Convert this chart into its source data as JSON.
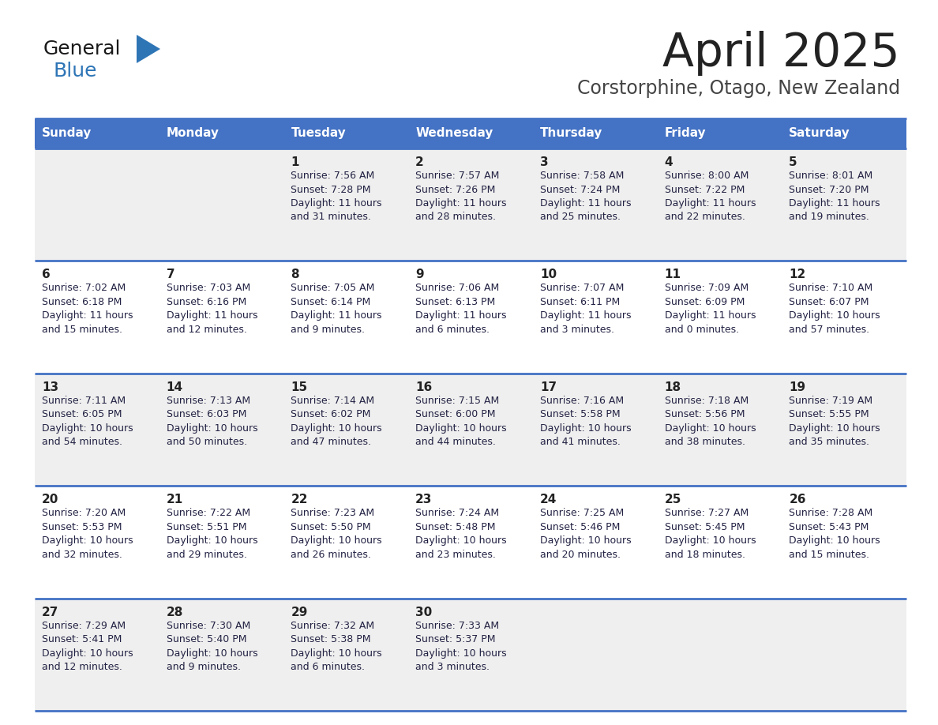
{
  "title": "April 2025",
  "subtitle": "Corstorphine, Otago, New Zealand",
  "days_of_week": [
    "Sunday",
    "Monday",
    "Tuesday",
    "Wednesday",
    "Thursday",
    "Friday",
    "Saturday"
  ],
  "header_bg_color": "#4472C4",
  "header_text_color": "#FFFFFF",
  "cell_bg_color_row0": "#EFEFEF",
  "cell_bg_color_row1": "#FFFFFF",
  "cell_bg_color_row2": "#EFEFEF",
  "cell_bg_color_row3": "#FFFFFF",
  "cell_bg_color_row4": "#EFEFEF",
  "cell_border_color": "#4472C4",
  "day_number_color": "#222222",
  "cell_text_color": "#222244",
  "title_color": "#222222",
  "subtitle_color": "#444444",
  "logo_general_color": "#1a1a1a",
  "logo_blue_color": "#2E75B6",
  "calendar_data": [
    [
      "",
      "",
      "1\nSunrise: 7:56 AM\nSunset: 7:28 PM\nDaylight: 11 hours\nand 31 minutes.",
      "2\nSunrise: 7:57 AM\nSunset: 7:26 PM\nDaylight: 11 hours\nand 28 minutes.",
      "3\nSunrise: 7:58 AM\nSunset: 7:24 PM\nDaylight: 11 hours\nand 25 minutes.",
      "4\nSunrise: 8:00 AM\nSunset: 7:22 PM\nDaylight: 11 hours\nand 22 minutes.",
      "5\nSunrise: 8:01 AM\nSunset: 7:20 PM\nDaylight: 11 hours\nand 19 minutes."
    ],
    [
      "6\nSunrise: 7:02 AM\nSunset: 6:18 PM\nDaylight: 11 hours\nand 15 minutes.",
      "7\nSunrise: 7:03 AM\nSunset: 6:16 PM\nDaylight: 11 hours\nand 12 minutes.",
      "8\nSunrise: 7:05 AM\nSunset: 6:14 PM\nDaylight: 11 hours\nand 9 minutes.",
      "9\nSunrise: 7:06 AM\nSunset: 6:13 PM\nDaylight: 11 hours\nand 6 minutes.",
      "10\nSunrise: 7:07 AM\nSunset: 6:11 PM\nDaylight: 11 hours\nand 3 minutes.",
      "11\nSunrise: 7:09 AM\nSunset: 6:09 PM\nDaylight: 11 hours\nand 0 minutes.",
      "12\nSunrise: 7:10 AM\nSunset: 6:07 PM\nDaylight: 10 hours\nand 57 minutes."
    ],
    [
      "13\nSunrise: 7:11 AM\nSunset: 6:05 PM\nDaylight: 10 hours\nand 54 minutes.",
      "14\nSunrise: 7:13 AM\nSunset: 6:03 PM\nDaylight: 10 hours\nand 50 minutes.",
      "15\nSunrise: 7:14 AM\nSunset: 6:02 PM\nDaylight: 10 hours\nand 47 minutes.",
      "16\nSunrise: 7:15 AM\nSunset: 6:00 PM\nDaylight: 10 hours\nand 44 minutes.",
      "17\nSunrise: 7:16 AM\nSunset: 5:58 PM\nDaylight: 10 hours\nand 41 minutes.",
      "18\nSunrise: 7:18 AM\nSunset: 5:56 PM\nDaylight: 10 hours\nand 38 minutes.",
      "19\nSunrise: 7:19 AM\nSunset: 5:55 PM\nDaylight: 10 hours\nand 35 minutes."
    ],
    [
      "20\nSunrise: 7:20 AM\nSunset: 5:53 PM\nDaylight: 10 hours\nand 32 minutes.",
      "21\nSunrise: 7:22 AM\nSunset: 5:51 PM\nDaylight: 10 hours\nand 29 minutes.",
      "22\nSunrise: 7:23 AM\nSunset: 5:50 PM\nDaylight: 10 hours\nand 26 minutes.",
      "23\nSunrise: 7:24 AM\nSunset: 5:48 PM\nDaylight: 10 hours\nand 23 minutes.",
      "24\nSunrise: 7:25 AM\nSunset: 5:46 PM\nDaylight: 10 hours\nand 20 minutes.",
      "25\nSunrise: 7:27 AM\nSunset: 5:45 PM\nDaylight: 10 hours\nand 18 minutes.",
      "26\nSunrise: 7:28 AM\nSunset: 5:43 PM\nDaylight: 10 hours\nand 15 minutes."
    ],
    [
      "27\nSunrise: 7:29 AM\nSunset: 5:41 PM\nDaylight: 10 hours\nand 12 minutes.",
      "28\nSunrise: 7:30 AM\nSunset: 5:40 PM\nDaylight: 10 hours\nand 9 minutes.",
      "29\nSunrise: 7:32 AM\nSunset: 5:38 PM\nDaylight: 10 hours\nand 6 minutes.",
      "30\nSunrise: 7:33 AM\nSunset: 5:37 PM\nDaylight: 10 hours\nand 3 minutes.",
      "",
      "",
      ""
    ]
  ],
  "row_colors": [
    "#EFEFEF",
    "#FFFFFF",
    "#EFEFEF",
    "#FFFFFF",
    "#EFEFEF"
  ]
}
